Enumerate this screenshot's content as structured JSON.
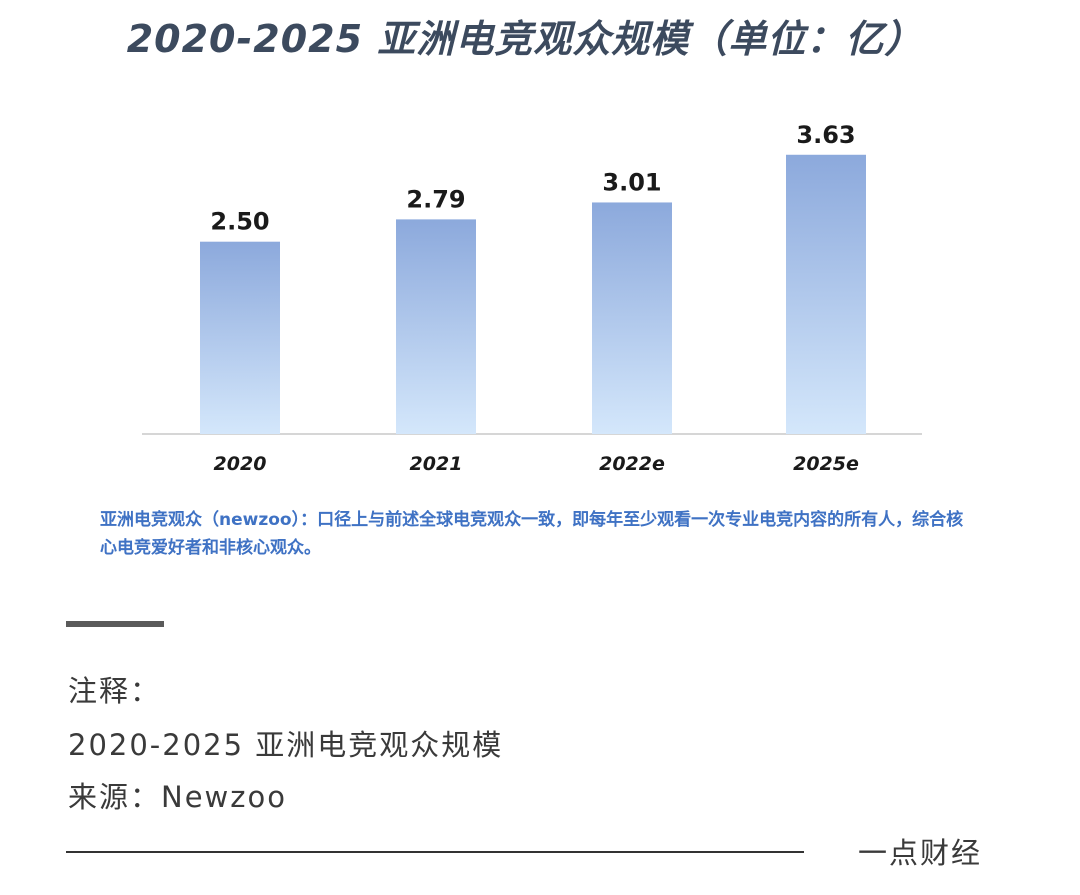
{
  "chart_data": {
    "type": "bar",
    "title": "2020-2025 亚洲电竞观众规模（单位：亿）",
    "categories": [
      "2020",
      "2021",
      "2022e",
      "2025e"
    ],
    "values": [
      2.5,
      2.79,
      3.01,
      3.63
    ],
    "value_labels": [
      "2.50",
      "2.79",
      "3.01",
      "3.63"
    ],
    "xlabel": "",
    "ylabel": "",
    "ylim": [
      0,
      3.9
    ],
    "grid": false,
    "legend": "none",
    "bar_color_top": "#8ca9dc",
    "bar_color_bottom": "#d4e7fb",
    "footnote": "亚洲电竞观众（newzoo）：口径上与前述全球电竞观众一致，即每年至少观看一次专业电竞内容的所有人，综合核心电竞爱好者和非核心观众。"
  },
  "notes": {
    "heading": "注释：",
    "line1": "2020-2025 亚洲电竞观众规模",
    "line2": "来源：Newzoo"
  },
  "brand": "一点财经",
  "colors": {
    "title": "#3c4a5e",
    "footnote": "#3f72c4",
    "text": "#3a3a3a"
  }
}
